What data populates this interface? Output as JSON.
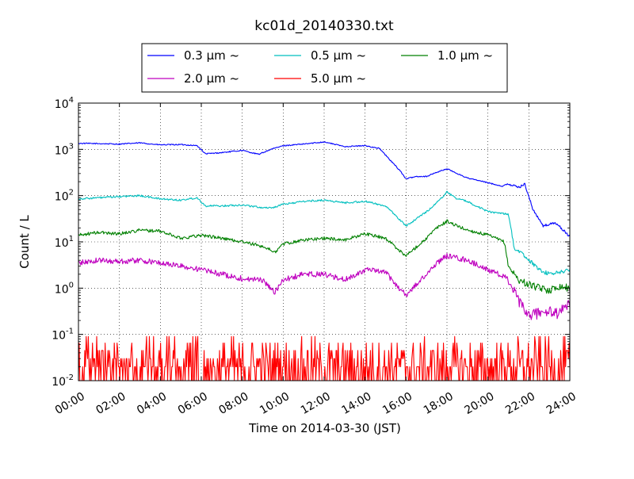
{
  "chart_data": {
    "type": "line",
    "title": "kc01d_20140330.txt",
    "xlabel": "Time on 2014-03-30 (JST)",
    "ylabel": "Count / L",
    "xlim": [
      0,
      24
    ],
    "ylim": [
      0.01,
      10000
    ],
    "yscale": "log",
    "grid": true,
    "legend_position": "top",
    "x_ticks": [
      {
        "value": 0,
        "label": "00:00"
      },
      {
        "value": 2,
        "label": "02:00"
      },
      {
        "value": 4,
        "label": "04:00"
      },
      {
        "value": 6,
        "label": "06:00"
      },
      {
        "value": 8,
        "label": "08:00"
      },
      {
        "value": 10,
        "label": "10:00"
      },
      {
        "value": 12,
        "label": "12:00"
      },
      {
        "value": 14,
        "label": "14:00"
      },
      {
        "value": 16,
        "label": "16:00"
      },
      {
        "value": 18,
        "label": "18:00"
      },
      {
        "value": 20,
        "label": "20:00"
      },
      {
        "value": 22,
        "label": "22:00"
      },
      {
        "value": 24,
        "label": "24:00"
      }
    ],
    "y_ticks": [
      {
        "value": 0.01,
        "base": "10",
        "exp": "-2"
      },
      {
        "value": 0.1,
        "base": "10",
        "exp": "-1"
      },
      {
        "value": 1,
        "base": "10",
        "exp": "0"
      },
      {
        "value": 10,
        "base": "10",
        "exp": "1"
      },
      {
        "value": 100,
        "base": "10",
        "exp": "2"
      },
      {
        "value": 1000,
        "base": "10",
        "exp": "3"
      },
      {
        "value": 10000,
        "base": "10",
        "exp": "4"
      }
    ],
    "series": [
      {
        "name": "0.3 μm ~",
        "color": "#0000ff",
        "x": [
          0,
          1,
          2,
          3,
          4,
          5,
          5.8,
          6.2,
          7,
          8,
          8.8,
          9.4,
          10,
          11,
          12,
          13,
          14,
          14.7,
          15.2,
          15.7,
          16,
          16.5,
          17,
          17.5,
          18,
          18.5,
          19,
          20,
          20.7,
          21,
          21.5,
          21.8,
          22.2,
          22.7,
          23.3,
          24
        ],
        "y": [
          1350,
          1330,
          1300,
          1380,
          1250,
          1270,
          1200,
          800,
          850,
          950,
          780,
          1000,
          1200,
          1300,
          1450,
          1150,
          1200,
          1050,
          600,
          350,
          230,
          260,
          260,
          320,
          380,
          300,
          240,
          190,
          160,
          180,
          150,
          180,
          50,
          22,
          26,
          13
        ]
      },
      {
        "name": "0.5 μm ~",
        "color": "#00bfbf",
        "x": [
          0,
          1,
          2,
          3,
          4,
          5,
          5.8,
          6.2,
          7,
          8,
          9,
          9.5,
          10,
          11,
          12,
          13,
          14,
          15,
          15.7,
          16,
          17,
          17.5,
          18,
          18.5,
          19,
          20,
          21,
          21.3,
          21.8,
          22.5,
          23,
          23.5,
          24
        ],
        "y": [
          85,
          90,
          95,
          100,
          85,
          80,
          90,
          60,
          60,
          63,
          55,
          55,
          65,
          75,
          80,
          70,
          75,
          60,
          30,
          22,
          45,
          70,
          120,
          85,
          75,
          45,
          40,
          7,
          5,
          2.5,
          2,
          2.2,
          2.5
        ]
      },
      {
        "name": "1.0 μm ~",
        "color": "#008000",
        "x": [
          0,
          1,
          2,
          3,
          4,
          5,
          6,
          7,
          8,
          9,
          9.6,
          10,
          11,
          12,
          13,
          14,
          15,
          15.6,
          16,
          17,
          17.5,
          18,
          18.5,
          19,
          20,
          20.8,
          21,
          21.5,
          22,
          22.5,
          23,
          23.5,
          24
        ],
        "y": [
          14,
          16,
          15,
          18,
          17,
          12,
          14,
          12,
          10,
          8,
          6,
          9,
          11,
          12,
          11,
          15,
          12,
          7,
          5,
          12,
          20,
          28,
          22,
          18,
          14,
          10,
          3,
          1.5,
          1.2,
          1,
          0.9,
          1.1,
          1.0
        ]
      },
      {
        "name": "2.0 μm ~",
        "color": "#bf00bf",
        "x": [
          0,
          1,
          2,
          3,
          4,
          5,
          6,
          7,
          8,
          9,
          9.6,
          10,
          11,
          12,
          13,
          14,
          15,
          15.5,
          16,
          17,
          17.5,
          18,
          19,
          20,
          21,
          21.5,
          22,
          22.5,
          23,
          23.5,
          24
        ],
        "y": [
          3.5,
          4,
          3.8,
          4,
          3.5,
          3,
          2.5,
          2,
          1.6,
          1.5,
          0.8,
          1.5,
          2,
          2,
          1.5,
          2.5,
          2.2,
          1.2,
          0.7,
          2,
          3.5,
          5,
          4,
          2.5,
          1.6,
          0.5,
          0.25,
          0.3,
          0.3,
          0.28,
          0.5
        ]
      },
      {
        "name": "5.0 μm ~",
        "color": "#ff0000",
        "x": [
          0,
          24
        ],
        "y": [
          0.03,
          0.035
        ]
      }
    ]
  }
}
